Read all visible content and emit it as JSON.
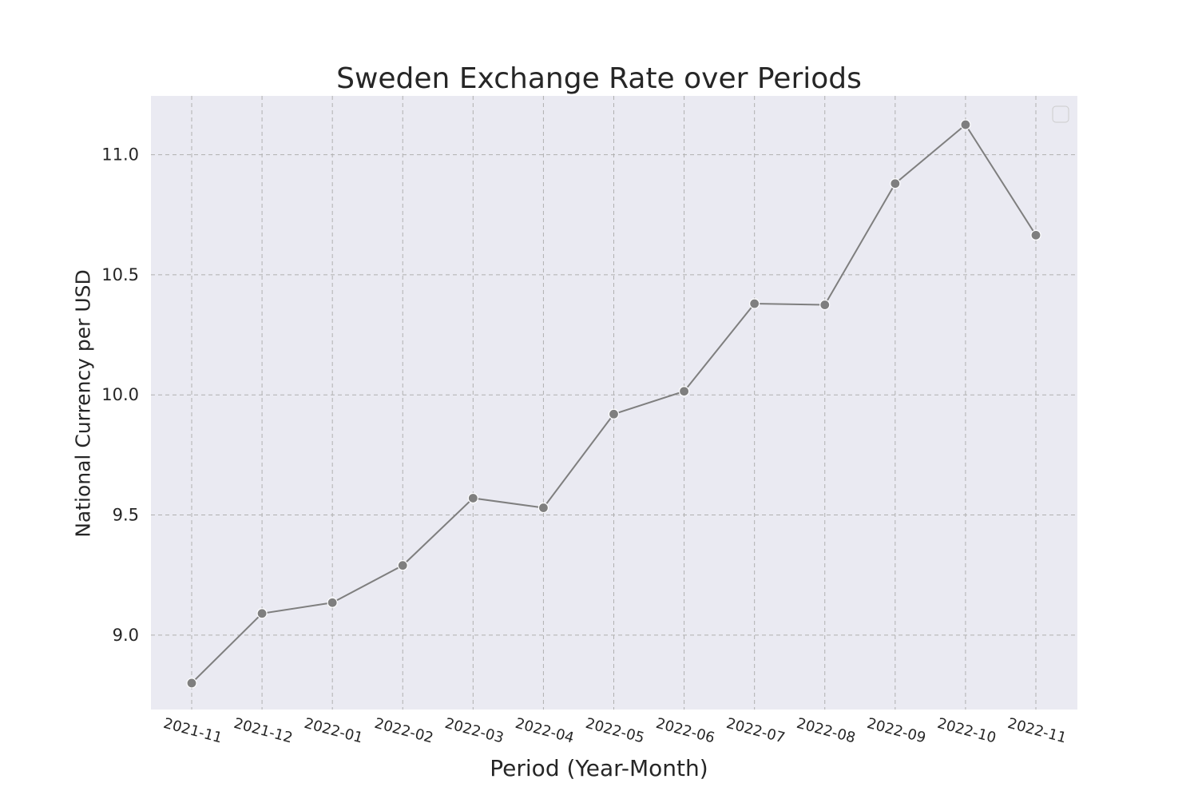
{
  "chart_data": {
    "type": "line",
    "title": "Sweden Exchange Rate over Periods",
    "xlabel": "Period (Year-Month)",
    "ylabel": "National Currency per USD",
    "categories": [
      "2021-11",
      "2021-12",
      "2022-01",
      "2022-02",
      "2022-03",
      "2022-04",
      "2022-05",
      "2022-06",
      "2022-07",
      "2022-08",
      "2022-09",
      "2022-10",
      "2022-11"
    ],
    "series": [
      {
        "values": [
          8.8,
          9.09,
          9.135,
          9.29,
          9.57,
          9.53,
          9.92,
          10.015,
          10.38,
          10.375,
          10.88,
          11.125,
          10.665
        ]
      }
    ],
    "yticks": [
      9.0,
      9.5,
      10.0,
      10.5,
      11.0
    ],
    "ytick_labels": [
      "9.0",
      "9.5",
      "10.0",
      "10.5",
      "11.0"
    ],
    "ylim": [
      8.69,
      11.245
    ],
    "grid": true,
    "legend": "top-right (empty)",
    "colors": {
      "line": "#7f7f7f",
      "marker_edge": "#ffffff",
      "plot_bg": "#eaeaf2",
      "grid": "#b0b0b0"
    }
  }
}
